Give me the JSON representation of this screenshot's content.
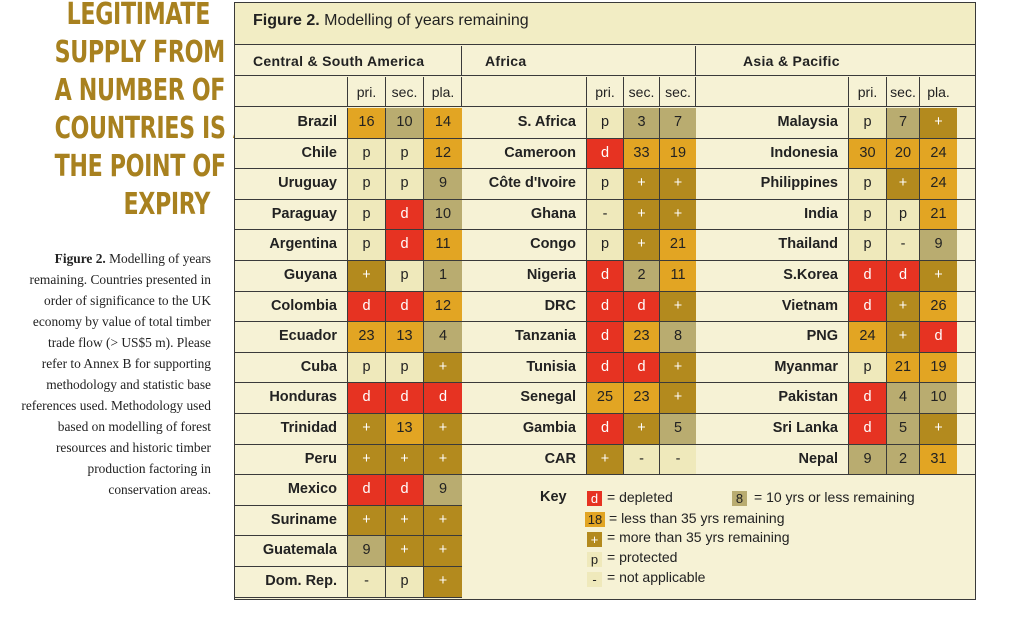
{
  "headline": [
    "LEGITIMATE",
    "SUPPLY FROM",
    "A NUMBER OF",
    "COUNTRIES IS AT",
    "THE POINT OF",
    "EXPIRY"
  ],
  "caption": {
    "bold": "Figure 2.",
    "text": " Modelling of years remaining. Countries presented in order of significance to the UK economy by value of total timber trade flow (> US$5 m). Please refer to Annex B for supporting methodology and statistic base references used. Methodology used based on modelling of forest resources and historic timber production factoring in conservation areas."
  },
  "figure": {
    "title_bold": "Figure 2.",
    "title_text": " Modelling of years remaining"
  },
  "regions": [
    {
      "name": "Central & South America",
      "cols": [
        "pri.",
        "sec.",
        "pla."
      ],
      "rows": [
        {
          "name": "Brazil",
          "v": [
            [
              "16",
              "o"
            ],
            [
              "10",
              "k"
            ],
            [
              "14",
              "o"
            ]
          ]
        },
        {
          "name": "Chile",
          "v": [
            [
              "p",
              "p"
            ],
            [
              "p",
              "p"
            ],
            [
              "12",
              "o"
            ]
          ]
        },
        {
          "name": "Uruguay",
          "v": [
            [
              "p",
              "p"
            ],
            [
              "p",
              "p"
            ],
            [
              "9",
              "k"
            ]
          ]
        },
        {
          "name": "Paraguay",
          "v": [
            [
              "p",
              "p"
            ],
            [
              "d",
              "d"
            ],
            [
              "10",
              "k"
            ]
          ]
        },
        {
          "name": "Argentina",
          "v": [
            [
              "p",
              "p"
            ],
            [
              "d",
              "d"
            ],
            [
              "11",
              "o"
            ]
          ]
        },
        {
          "name": "Guyana",
          "v": [
            [
              "+",
              "g"
            ],
            [
              "p",
              "p"
            ],
            [
              "1",
              "k"
            ]
          ]
        },
        {
          "name": "Colombia",
          "v": [
            [
              "d",
              "d"
            ],
            [
              "d",
              "d"
            ],
            [
              "12",
              "o"
            ]
          ]
        },
        {
          "name": "Ecuador",
          "v": [
            [
              "23",
              "o"
            ],
            [
              "13",
              "o"
            ],
            [
              "4",
              "k"
            ]
          ]
        },
        {
          "name": "Cuba",
          "v": [
            [
              "p",
              "p"
            ],
            [
              "p",
              "p"
            ],
            [
              "+",
              "g"
            ]
          ]
        },
        {
          "name": "Honduras",
          "v": [
            [
              "d",
              "d"
            ],
            [
              "d",
              "d"
            ],
            [
              "d",
              "d"
            ]
          ]
        },
        {
          "name": "Trinidad",
          "v": [
            [
              "+",
              "g"
            ],
            [
              "13",
              "o"
            ],
            [
              "+",
              "g"
            ]
          ]
        },
        {
          "name": "Peru",
          "v": [
            [
              "+",
              "g"
            ],
            [
              "+",
              "g"
            ],
            [
              "+",
              "g"
            ]
          ]
        },
        {
          "name": "Mexico",
          "v": [
            [
              "d",
              "d"
            ],
            [
              "d",
              "d"
            ],
            [
              "9",
              "k"
            ]
          ]
        },
        {
          "name": "Suriname",
          "v": [
            [
              "+",
              "g"
            ],
            [
              "+",
              "g"
            ],
            [
              "+",
              "g"
            ]
          ]
        },
        {
          "name": "Guatemala",
          "v": [
            [
              "9",
              "k"
            ],
            [
              "+",
              "g"
            ],
            [
              "+",
              "g"
            ]
          ]
        },
        {
          "name": "Dom. Rep.",
          "v": [
            [
              "-",
              "n"
            ],
            [
              "p",
              "p"
            ],
            [
              "+",
              "g"
            ]
          ]
        }
      ]
    },
    {
      "name": "Africa",
      "cols": [
        "pri.",
        "sec.",
        "sec."
      ],
      "rows": [
        {
          "name": "S. Africa",
          "v": [
            [
              "p",
              "p"
            ],
            [
              "3",
              "k"
            ],
            [
              "7",
              "k"
            ]
          ]
        },
        {
          "name": "Cameroon",
          "v": [
            [
              "d",
              "d"
            ],
            [
              "33",
              "o"
            ],
            [
              "19",
              "o"
            ]
          ]
        },
        {
          "name": "Côte d'Ivoire",
          "v": [
            [
              "p",
              "p"
            ],
            [
              "+",
              "g"
            ],
            [
              "+",
              "g"
            ]
          ]
        },
        {
          "name": "Ghana",
          "v": [
            [
              "-",
              "n"
            ],
            [
              "+",
              "g"
            ],
            [
              "+",
              "g"
            ]
          ]
        },
        {
          "name": "Congo",
          "v": [
            [
              "p",
              "p"
            ],
            [
              "+",
              "g"
            ],
            [
              "21",
              "o"
            ]
          ]
        },
        {
          "name": "Nigeria",
          "v": [
            [
              "d",
              "d"
            ],
            [
              "2",
              "k"
            ],
            [
              "11",
              "o"
            ]
          ]
        },
        {
          "name": "DRC",
          "v": [
            [
              "d",
              "d"
            ],
            [
              "d",
              "d"
            ],
            [
              "+",
              "g"
            ]
          ]
        },
        {
          "name": "Tanzania",
          "v": [
            [
              "d",
              "d"
            ],
            [
              "23",
              "o"
            ],
            [
              "8",
              "k"
            ]
          ]
        },
        {
          "name": "Tunisia",
          "v": [
            [
              "d",
              "d"
            ],
            [
              "d",
              "d"
            ],
            [
              "+",
              "g"
            ]
          ]
        },
        {
          "name": "Senegal",
          "v": [
            [
              "25",
              "o"
            ],
            [
              "23",
              "o"
            ],
            [
              "+",
              "g"
            ]
          ]
        },
        {
          "name": "Gambia",
          "v": [
            [
              "d",
              "d"
            ],
            [
              "+",
              "g"
            ],
            [
              "5",
              "k"
            ]
          ]
        },
        {
          "name": "CAR",
          "v": [
            [
              "+",
              "g"
            ],
            [
              "-",
              "n"
            ],
            [
              "-",
              "n"
            ]
          ]
        }
      ]
    },
    {
      "name": "Asia & Pacific",
      "cols": [
        "pri.",
        "sec.",
        "pla."
      ],
      "rows": [
        {
          "name": "Malaysia",
          "v": [
            [
              "p",
              "p"
            ],
            [
              "7",
              "k"
            ],
            [
              "+",
              "g"
            ]
          ]
        },
        {
          "name": "Indonesia",
          "v": [
            [
              "30",
              "o"
            ],
            [
              "20",
              "o"
            ],
            [
              "24",
              "o"
            ]
          ]
        },
        {
          "name": "Philippines",
          "v": [
            [
              "p",
              "p"
            ],
            [
              "+",
              "g"
            ],
            [
              "24",
              "o"
            ]
          ]
        },
        {
          "name": "India",
          "v": [
            [
              "p",
              "p"
            ],
            [
              "p",
              "p"
            ],
            [
              "21",
              "o"
            ]
          ]
        },
        {
          "name": "Thailand",
          "v": [
            [
              "p",
              "p"
            ],
            [
              "-",
              "n"
            ],
            [
              "9",
              "k"
            ]
          ]
        },
        {
          "name": "S.Korea",
          "v": [
            [
              "d",
              "d"
            ],
            [
              "d",
              "d"
            ],
            [
              "+",
              "g"
            ]
          ]
        },
        {
          "name": "Vietnam",
          "v": [
            [
              "d",
              "d"
            ],
            [
              "+",
              "g"
            ],
            [
              "26",
              "o"
            ]
          ]
        },
        {
          "name": "PNG",
          "v": [
            [
              "24",
              "o"
            ],
            [
              "+",
              "g"
            ],
            [
              "d",
              "d"
            ]
          ]
        },
        {
          "name": "Myanmar",
          "v": [
            [
              "p",
              "p"
            ],
            [
              "21",
              "o"
            ],
            [
              "19",
              "o"
            ]
          ]
        },
        {
          "name": "Pakistan",
          "v": [
            [
              "d",
              "d"
            ],
            [
              "4",
              "k"
            ],
            [
              "10",
              "k"
            ]
          ]
        },
        {
          "name": "Sri Lanka",
          "v": [
            [
              "d",
              "d"
            ],
            [
              "5",
              "k"
            ],
            [
              "+",
              "g"
            ]
          ]
        },
        {
          "name": "Nepal",
          "v": [
            [
              "9",
              "k"
            ],
            [
              "2",
              "k"
            ],
            [
              "31",
              "o"
            ]
          ]
        }
      ]
    }
  ],
  "key": {
    "label": "Key",
    "items": [
      {
        "sym": "d",
        "cls": "d",
        "text": "= depleted"
      },
      {
        "sym": "8",
        "cls": "k",
        "text": "=  10 yrs or less remaining"
      },
      {
        "sym": "18",
        "cls": "o",
        "text": "= less than 35 yrs remaining"
      },
      {
        "sym": "+",
        "cls": "g",
        "text": "= more than 35 yrs remaining"
      },
      {
        "sym": "p",
        "cls": "p",
        "text": "= protected"
      },
      {
        "sym": "-",
        "cls": "n",
        "text": "= not applicable"
      }
    ]
  },
  "colors": {
    "depleted": "#e63322",
    "less_than_35": "#e2a523",
    "ten_or_less": "#b9ac70",
    "more_than_35": "#b38a1e",
    "protected": "#efe9bb",
    "headline": "#a8811f"
  }
}
